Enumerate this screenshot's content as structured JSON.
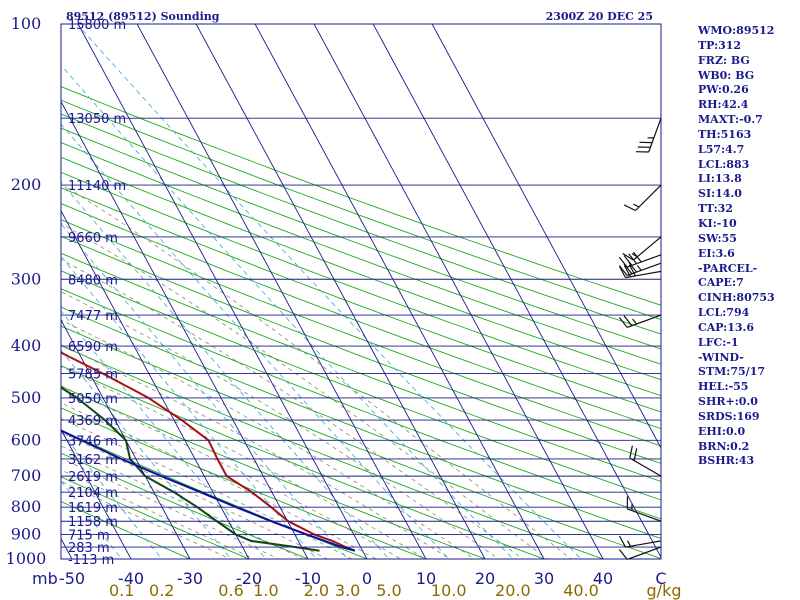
{
  "header": {
    "station_title": "89512 (89512) Sounding",
    "time_title": "2300Z 20 DEC 25"
  },
  "indices": [
    "WMO:89512",
    "TP:312",
    "FRZ: BG",
    "WB0: BG",
    "PW:0.26",
    "RH:42.4",
    "MAXT:-0.7",
    "TH:5163",
    "L57:4.7",
    "LCL:883",
    "LI:13.8",
    "SI:14.0",
    "TT:32",
    "KI:-10",
    "SW:55",
    "EI:3.6",
    "-PARCEL-",
    "CAPE:7",
    "CINH:80753",
    "LCL:794",
    "CAP:13.6",
    "LFC:-1",
    "-WIND-",
    "STM:75/17",
    "HEL:-55",
    "SHR+:0.0",
    "SRDS:169",
    "EHI:0.0",
    "BRN:0.2",
    "BSHR:43"
  ],
  "colors": {
    "isobar": "#1a1a8c",
    "isotherm": "#1a1a8c",
    "dry_adiabat": "#22aa22",
    "moist_adiabat": "#8c8c6a",
    "mixing_ratio": "#33aacc",
    "temperature": "#aa1111",
    "dewpoint": "#114411",
    "parcel": "#0d0da0",
    "wind_barb": "#111111",
    "mixing_label": "#8a6a00",
    "text": "#1a1a8c"
  },
  "chart_data": {
    "type": "line",
    "title": "89512 (89512) Sounding",
    "subtitle": "2300Z 20 DEC 25",
    "xlabel": "",
    "ylabel": "",
    "xlim": [
      -50,
      50
    ],
    "ylim": [
      1000,
      100
    ],
    "y_scale": "log",
    "pressure_units_label": "mb",
    "pressure_ticks": [
      100,
      200,
      300,
      400,
      500,
      600,
      700,
      800,
      900,
      1000
    ],
    "temperature_ticks": [
      -50,
      -40,
      -30,
      -20,
      -10,
      0,
      10,
      20,
      30,
      40
    ],
    "temperature_units_label": "C",
    "mixing_ratio_labels": [
      "0.1",
      "0.2",
      "0.6",
      "1.0",
      "2.0",
      "3.0",
      "5.0",
      "10.0",
      "20.0",
      "40.0"
    ],
    "mixing_ratio_values": [
      0.1,
      0.2,
      0.6,
      1.0,
      2.0,
      3.0,
      5.0,
      10.0,
      20.0,
      40.0
    ],
    "mixing_ratio_units_label": "g/kg",
    "height_labels": [
      {
        "p": 100,
        "label": "15800 m"
      },
      {
        "p": 150,
        "label": "13050 m"
      },
      {
        "p": 200,
        "label": "11140 m"
      },
      {
        "p": 250,
        "label": "9660 m"
      },
      {
        "p": 300,
        "label": "8480 m"
      },
      {
        "p": 350,
        "label": "7477 m"
      },
      {
        "p": 400,
        "label": "6590 m"
      },
      {
        "p": 450,
        "label": "5785 m"
      },
      {
        "p": 500,
        "label": "5050 m"
      },
      {
        "p": 550,
        "label": "4369 m"
      },
      {
        "p": 600,
        "label": "3746 m"
      },
      {
        "p": 650,
        "label": "3162 m"
      },
      {
        "p": 700,
        "label": "2619 m"
      },
      {
        "p": 750,
        "label": "2104 m"
      },
      {
        "p": 800,
        "label": "1619 m"
      },
      {
        "p": 850,
        "label": "1158 m"
      },
      {
        "p": 900,
        "label": "715 m"
      },
      {
        "p": 950,
        "label": "283 m"
      },
      {
        "p": 1000,
        "label": "-113 m"
      }
    ],
    "series": [
      {
        "key": "temperature",
        "p": [
          965,
          950,
          925,
          900,
          850,
          800,
          750,
          700,
          650,
          600,
          550,
          500,
          450,
          400,
          350,
          300,
          250,
          200,
          150,
          120,
          100
        ],
        "t": [
          -1.3,
          -2.5,
          -4.2,
          -6.7,
          -9.9,
          -11.5,
          -13.4,
          -16.2,
          -16.2,
          -16.0,
          -18.7,
          -22.3,
          -27.8,
          -34.6,
          -43.5,
          -50.5,
          -53.0,
          -55.7,
          -60.2,
          -63.0,
          -64.3
        ]
      },
      {
        "key": "dewpoint",
        "p": [
          965,
          950,
          925,
          900,
          850,
          800,
          750,
          700,
          650,
          600,
          550,
          500,
          450,
          400,
          350,
          300,
          250,
          200,
          150,
          120,
          100
        ],
        "t": [
          -7.3,
          -11.0,
          -18.0,
          -20.0,
          -22.0,
          -24.0,
          -26.6,
          -30.0,
          -31.0,
          -30.0,
          -31.7,
          -34.4,
          -38.6,
          -44.7,
          -53.8,
          -58.0,
          -58.9,
          -61.3,
          -65.2,
          -70.0,
          -72.9
        ]
      },
      {
        "key": "parcel",
        "p": [
          965,
          950,
          900,
          850,
          800,
          750,
          700,
          650,
          600,
          550,
          500,
          450,
          400,
          350,
          300,
          250,
          200,
          150,
          120
        ],
        "t": [
          -1.3,
          -3.2,
          -8.0,
          -12.8,
          -17.4,
          -22.1,
          -27.3,
          -32.5,
          -37.5,
          -42.9,
          -48.7,
          -55.0,
          -62.0,
          -69.8,
          -78.4,
          -88.0,
          -99.3,
          -113.5,
          -124.0
        ]
      }
    ],
    "wind_barbs": [
      {
        "p": 150,
        "direction": 200,
        "speed_kt": 35
      },
      {
        "p": 200,
        "direction": 225,
        "speed_kt": 15
      },
      {
        "p": 250,
        "direction": 230,
        "speed_kt": 15
      },
      {
        "p": 270,
        "direction": 250,
        "speed_kt": 40
      },
      {
        "p": 280,
        "direction": 250,
        "speed_kt": 35
      },
      {
        "p": 290,
        "direction": 260,
        "speed_kt": 30
      },
      {
        "p": 350,
        "direction": 250,
        "speed_kt": 25
      },
      {
        "p": 700,
        "direction": 300,
        "speed_kt": 20
      },
      {
        "p": 850,
        "direction": 290,
        "speed_kt": 15
      },
      {
        "p": 925,
        "direction": 260,
        "speed_kt": 15
      },
      {
        "p": 950,
        "direction": 250,
        "speed_kt": 10
      }
    ],
    "grid": true
  }
}
